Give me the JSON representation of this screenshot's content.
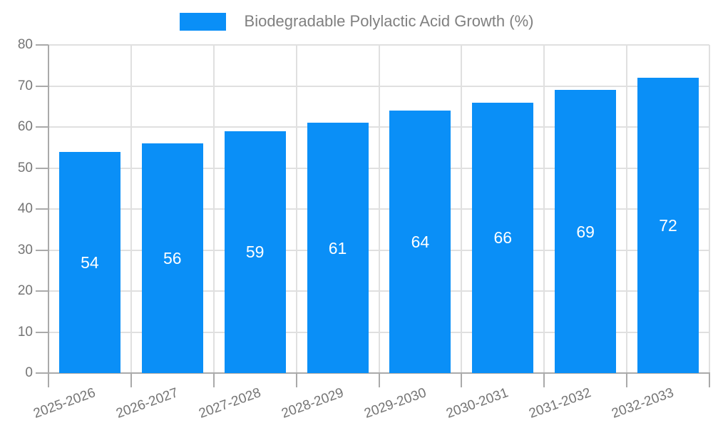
{
  "legend": {
    "label": "Biodegradable Polylactic Acid Growth (%)"
  },
  "chart_data": {
    "type": "bar",
    "title": "Biodegradable Polylactic Acid Growth (%)",
    "categories": [
      "2025-2026",
      "2026-2027",
      "2027-2028",
      "2028-2029",
      "2029-2030",
      "2030-2031",
      "2031-2032",
      "2032-2033"
    ],
    "values": [
      54,
      56,
      59,
      61,
      64,
      66,
      69,
      72
    ],
    "xlabel": "",
    "ylabel": "",
    "ylim": [
      0,
      80
    ],
    "ytick_step": 10,
    "yticks": [
      0,
      10,
      20,
      30,
      40,
      50,
      60,
      70,
      80
    ],
    "grid": true,
    "legend_position": "top-center",
    "value_labels": "inside-middle",
    "colors": {
      "bar": "#0A8FF7",
      "value_label": "#FFFFFF",
      "axis_label": "#757575",
      "legend_text": "#808080",
      "grid_line": "#E0E0E0",
      "axis_line": "#AAAAAA"
    }
  }
}
